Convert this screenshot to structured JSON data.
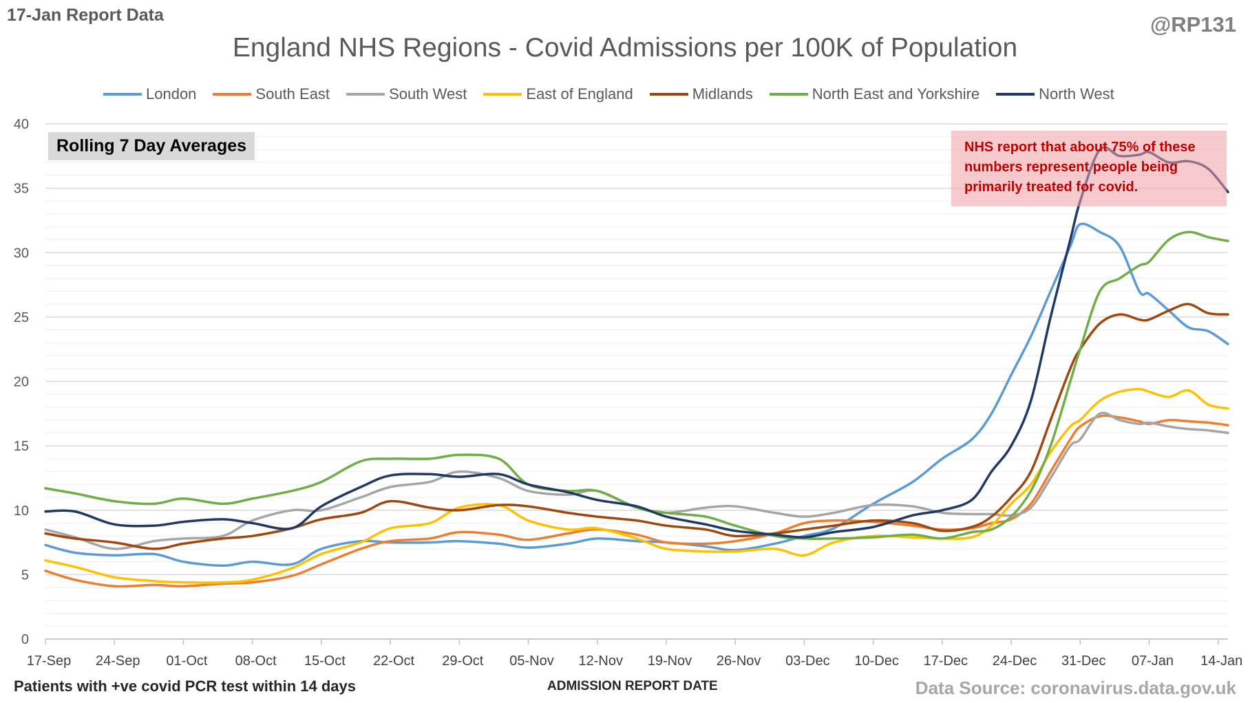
{
  "header": {
    "report_date": "17-Jan Report Data",
    "handle": "@RP131"
  },
  "chart_data": {
    "type": "line",
    "title": "England NHS Regions - Covid Admissions per 100K of Population",
    "xlabel": "ADMISSION REPORT DATE",
    "ylabel": "",
    "ylim": [
      0,
      40
    ],
    "y_ticks": [
      0,
      5,
      10,
      15,
      20,
      25,
      30,
      35,
      40
    ],
    "x_range": [
      "2021-09-17",
      "2022-01-15"
    ],
    "x_ticks": [
      "17-Sep",
      "24-Sep",
      "01-Oct",
      "08-Oct",
      "15-Oct",
      "22-Oct",
      "29-Oct",
      "05-Nov",
      "12-Nov",
      "19-Nov",
      "26-Nov",
      "03-Dec",
      "10-Dec",
      "17-Dec",
      "24-Dec",
      "31-Dec",
      "07-Jan",
      "14-Jan"
    ],
    "x_tick_dates": [
      "2021-09-17",
      "2021-09-24",
      "2021-10-01",
      "2021-10-08",
      "2021-10-15",
      "2021-10-22",
      "2021-10-29",
      "2021-11-05",
      "2021-11-12",
      "2021-11-19",
      "2021-11-26",
      "2021-12-03",
      "2021-12-10",
      "2021-12-17",
      "2021-12-24",
      "2021-12-31",
      "2022-01-07",
      "2022-01-14"
    ],
    "grid": true,
    "legend_position": "top",
    "box_label": "Rolling 7 Day Averages",
    "annotation": "NHS report that about 75% of these numbers represent people being primarily treated for covid.",
    "series": [
      {
        "name": "London",
        "color": "#5b9bd5",
        "dates": [
          "2021-09-17",
          "2021-09-20",
          "2021-09-24",
          "2021-09-28",
          "2021-10-01",
          "2021-10-05",
          "2021-10-08",
          "2021-10-12",
          "2021-10-15",
          "2021-10-19",
          "2021-10-22",
          "2021-10-26",
          "2021-10-29",
          "2021-11-02",
          "2021-11-05",
          "2021-11-09",
          "2021-11-12",
          "2021-11-16",
          "2021-11-19",
          "2021-11-23",
          "2021-11-26",
          "2021-11-30",
          "2021-12-03",
          "2021-12-06",
          "2021-12-10",
          "2021-12-14",
          "2021-12-17",
          "2021-12-20",
          "2021-12-22",
          "2021-12-24",
          "2021-12-26",
          "2021-12-28",
          "2021-12-30",
          "2021-12-31",
          "2022-01-02",
          "2022-01-04",
          "2022-01-06",
          "2022-01-07",
          "2022-01-09",
          "2022-01-11",
          "2022-01-13",
          "2022-01-15"
        ],
        "values": [
          7.3,
          6.7,
          6.5,
          6.6,
          6.0,
          5.7,
          6.0,
          5.8,
          7.0,
          7.6,
          7.5,
          7.5,
          7.6,
          7.4,
          7.1,
          7.4,
          7.8,
          7.6,
          7.5,
          7.2,
          6.9,
          7.4,
          8.0,
          8.6,
          10.5,
          12.2,
          14.0,
          15.5,
          17.5,
          20.5,
          23.5,
          27.0,
          30.5,
          32.2,
          31.6,
          30.5,
          27.0,
          26.8,
          25.5,
          24.2,
          23.9,
          22.9
        ]
      },
      {
        "name": "South East",
        "color": "#ed7d31",
        "dates": [
          "2021-09-17",
          "2021-09-20",
          "2021-09-24",
          "2021-09-28",
          "2021-10-01",
          "2021-10-05",
          "2021-10-08",
          "2021-10-12",
          "2021-10-15",
          "2021-10-19",
          "2021-10-22",
          "2021-10-26",
          "2021-10-29",
          "2021-11-02",
          "2021-11-05",
          "2021-11-09",
          "2021-11-12",
          "2021-11-16",
          "2021-11-19",
          "2021-11-23",
          "2021-11-26",
          "2021-11-30",
          "2021-12-03",
          "2021-12-06",
          "2021-12-10",
          "2021-12-14",
          "2021-12-17",
          "2021-12-20",
          "2021-12-22",
          "2021-12-24",
          "2021-12-26",
          "2021-12-28",
          "2021-12-30",
          "2021-12-31",
          "2022-01-02",
          "2022-01-04",
          "2022-01-06",
          "2022-01-07",
          "2022-01-09",
          "2022-01-11",
          "2022-01-13",
          "2022-01-15"
        ],
        "values": [
          5.3,
          4.6,
          4.1,
          4.2,
          4.1,
          4.3,
          4.4,
          4.9,
          5.8,
          7.0,
          7.6,
          7.8,
          8.3,
          8.1,
          7.7,
          8.2,
          8.5,
          8.1,
          7.5,
          7.4,
          7.6,
          8.2,
          9.0,
          9.2,
          9.1,
          8.8,
          8.5,
          8.6,
          9.0,
          9.3,
          10.5,
          13.0,
          15.5,
          16.5,
          17.3,
          17.2,
          16.9,
          16.7,
          17.0,
          16.9,
          16.8,
          16.6
        ]
      },
      {
        "name": "South West",
        "color": "#a5a5a5",
        "dates": [
          "2021-09-17",
          "2021-09-20",
          "2021-09-24",
          "2021-09-28",
          "2021-10-01",
          "2021-10-05",
          "2021-10-08",
          "2021-10-12",
          "2021-10-15",
          "2021-10-19",
          "2021-10-22",
          "2021-10-26",
          "2021-10-29",
          "2021-11-02",
          "2021-11-05",
          "2021-11-09",
          "2021-11-12",
          "2021-11-16",
          "2021-11-19",
          "2021-11-23",
          "2021-11-26",
          "2021-11-30",
          "2021-12-03",
          "2021-12-06",
          "2021-12-10",
          "2021-12-14",
          "2021-12-17",
          "2021-12-20",
          "2021-12-22",
          "2021-12-24",
          "2021-12-26",
          "2021-12-28",
          "2021-12-30",
          "2021-12-31",
          "2022-01-02",
          "2022-01-04",
          "2022-01-06",
          "2022-01-07",
          "2022-01-09",
          "2022-01-11",
          "2022-01-13",
          "2022-01-15"
        ],
        "values": [
          8.5,
          7.9,
          7.0,
          7.6,
          7.8,
          8.0,
          9.2,
          10.0,
          10.0,
          11.0,
          11.8,
          12.2,
          13.0,
          12.5,
          11.5,
          11.2,
          11.5,
          10.2,
          9.8,
          10.2,
          10.3,
          9.8,
          9.5,
          9.8,
          10.4,
          10.3,
          9.8,
          9.7,
          9.7,
          9.6,
          10.2,
          12.5,
          15.0,
          15.5,
          17.5,
          17.0,
          16.7,
          16.8,
          16.5,
          16.3,
          16.2,
          16.0
        ]
      },
      {
        "name": "East of England",
        "color": "#ffc000",
        "dates": [
          "2021-09-17",
          "2021-09-20",
          "2021-09-24",
          "2021-09-28",
          "2021-10-01",
          "2021-10-05",
          "2021-10-08",
          "2021-10-12",
          "2021-10-15",
          "2021-10-19",
          "2021-10-22",
          "2021-10-26",
          "2021-10-29",
          "2021-11-02",
          "2021-11-05",
          "2021-11-09",
          "2021-11-12",
          "2021-11-16",
          "2021-11-19",
          "2021-11-23",
          "2021-11-26",
          "2021-11-30",
          "2021-12-03",
          "2021-12-06",
          "2021-12-10",
          "2021-12-14",
          "2021-12-17",
          "2021-12-20",
          "2021-12-22",
          "2021-12-24",
          "2021-12-26",
          "2021-12-28",
          "2021-12-30",
          "2021-12-31",
          "2022-01-02",
          "2022-01-04",
          "2022-01-06",
          "2022-01-07",
          "2022-01-09",
          "2022-01-11",
          "2022-01-13",
          "2022-01-15"
        ],
        "values": [
          6.1,
          5.6,
          4.8,
          4.5,
          4.4,
          4.4,
          4.6,
          5.5,
          6.6,
          7.5,
          8.6,
          9.0,
          10.2,
          10.4,
          9.2,
          8.5,
          8.6,
          7.8,
          7.0,
          6.8,
          6.8,
          7.0,
          6.5,
          7.5,
          8.0,
          7.9,
          7.8,
          7.9,
          8.8,
          10.5,
          12.0,
          14.5,
          16.5,
          17.0,
          18.5,
          19.2,
          19.4,
          19.2,
          18.8,
          19.3,
          18.2,
          17.9
        ]
      },
      {
        "name": "Midlands",
        "color": "#9e480e",
        "dates": [
          "2021-09-17",
          "2021-09-20",
          "2021-09-24",
          "2021-09-28",
          "2021-10-01",
          "2021-10-05",
          "2021-10-08",
          "2021-10-12",
          "2021-10-15",
          "2021-10-19",
          "2021-10-22",
          "2021-10-26",
          "2021-10-29",
          "2021-11-02",
          "2021-11-05",
          "2021-11-09",
          "2021-11-12",
          "2021-11-16",
          "2021-11-19",
          "2021-11-23",
          "2021-11-26",
          "2021-11-30",
          "2021-12-03",
          "2021-12-06",
          "2021-12-10",
          "2021-12-14",
          "2021-12-17",
          "2021-12-20",
          "2021-12-22",
          "2021-12-24",
          "2021-12-26",
          "2021-12-28",
          "2021-12-30",
          "2021-12-31",
          "2022-01-02",
          "2022-01-04",
          "2022-01-06",
          "2022-01-07",
          "2022-01-09",
          "2022-01-11",
          "2022-01-13",
          "2022-01-15"
        ],
        "values": [
          8.2,
          7.8,
          7.5,
          7.0,
          7.4,
          7.8,
          8.0,
          8.6,
          9.3,
          9.8,
          10.7,
          10.2,
          10.0,
          10.4,
          10.3,
          9.8,
          9.5,
          9.2,
          8.8,
          8.5,
          8.0,
          8.2,
          8.5,
          8.8,
          9.2,
          9.0,
          8.4,
          8.7,
          9.5,
          11.0,
          13.0,
          17.0,
          21.0,
          22.5,
          24.5,
          25.2,
          24.8,
          24.8,
          25.5,
          26.0,
          25.3,
          25.2
        ]
      },
      {
        "name": "North East and Yorkshire",
        "color": "#70ad47",
        "dates": [
          "2021-09-17",
          "2021-09-20",
          "2021-09-24",
          "2021-09-28",
          "2021-10-01",
          "2021-10-05",
          "2021-10-08",
          "2021-10-12",
          "2021-10-15",
          "2021-10-19",
          "2021-10-22",
          "2021-10-26",
          "2021-10-29",
          "2021-11-02",
          "2021-11-05",
          "2021-11-09",
          "2021-11-12",
          "2021-11-16",
          "2021-11-19",
          "2021-11-23",
          "2021-11-26",
          "2021-11-30",
          "2021-12-03",
          "2021-12-06",
          "2021-12-10",
          "2021-12-14",
          "2021-12-17",
          "2021-12-20",
          "2021-12-22",
          "2021-12-24",
          "2021-12-26",
          "2021-12-28",
          "2021-12-30",
          "2021-12-31",
          "2022-01-02",
          "2022-01-04",
          "2022-01-06",
          "2022-01-07",
          "2022-01-09",
          "2022-01-11",
          "2022-01-13",
          "2022-01-15"
        ],
        "values": [
          11.7,
          11.3,
          10.7,
          10.5,
          10.9,
          10.5,
          10.9,
          11.5,
          12.2,
          13.8,
          14.0,
          14.0,
          14.3,
          14.0,
          12.0,
          11.5,
          11.5,
          10.2,
          9.8,
          9.5,
          8.8,
          8.0,
          7.8,
          7.8,
          7.9,
          8.1,
          7.8,
          8.3,
          8.5,
          9.5,
          11.5,
          15.0,
          20.0,
          22.5,
          27.0,
          28.0,
          29.0,
          29.3,
          31.0,
          31.6,
          31.2,
          30.9
        ]
      },
      {
        "name": "North West",
        "color": "#203864",
        "dates": [
          "2021-09-17",
          "2021-09-20",
          "2021-09-24",
          "2021-09-28",
          "2021-10-01",
          "2021-10-05",
          "2021-10-08",
          "2021-10-12",
          "2021-10-15",
          "2021-10-19",
          "2021-10-22",
          "2021-10-26",
          "2021-10-29",
          "2021-11-02",
          "2021-11-05",
          "2021-11-09",
          "2021-11-12",
          "2021-11-16",
          "2021-11-19",
          "2021-11-23",
          "2021-11-26",
          "2021-11-30",
          "2021-12-03",
          "2021-12-06",
          "2021-12-10",
          "2021-12-14",
          "2021-12-17",
          "2021-12-20",
          "2021-12-22",
          "2021-12-24",
          "2021-12-26",
          "2021-12-28",
          "2021-12-30",
          "2021-12-31",
          "2022-01-02",
          "2022-01-04",
          "2022-01-06",
          "2022-01-07",
          "2022-01-09",
          "2022-01-11",
          "2022-01-13",
          "2022-01-15"
        ],
        "values": [
          9.9,
          9.9,
          8.9,
          8.8,
          9.1,
          9.3,
          9.0,
          8.6,
          10.3,
          11.8,
          12.7,
          12.8,
          12.6,
          12.8,
          12.0,
          11.4,
          10.8,
          10.3,
          9.5,
          8.9,
          8.4,
          8.1,
          7.9,
          8.3,
          8.7,
          9.6,
          10.0,
          10.8,
          13.0,
          15.0,
          18.5,
          25.0,
          31.0,
          34.0,
          38.0,
          37.5,
          37.6,
          37.8,
          37.0,
          37.1,
          36.5,
          34.7
        ]
      }
    ]
  },
  "footer": {
    "caption_left": "Patients with +ve covid PCR test within 14 days",
    "source": "Data Source: coronavirus.data.gov.uk"
  }
}
